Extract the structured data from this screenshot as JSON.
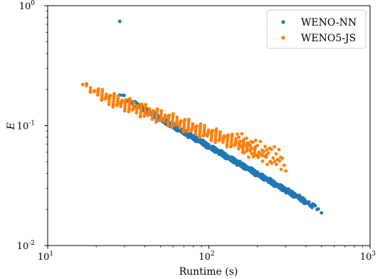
{
  "chart_data": {
    "type": "scatter",
    "xscale": "log",
    "yscale": "log",
    "xlim": [
      10,
      1000
    ],
    "ylim": [
      0.01,
      1
    ],
    "xlabel": "Runtime (s)",
    "ylabel": "E",
    "grid": false,
    "legend_position": "top-right",
    "x_ticks": [
      {
        "value": 10,
        "base": "10",
        "exp": "1"
      },
      {
        "value": 100,
        "base": "10",
        "exp": "2"
      },
      {
        "value": 1000,
        "base": "10",
        "exp": "3"
      }
    ],
    "y_ticks": [
      {
        "value": 0.01,
        "base": "10",
        "exp": "-2"
      },
      {
        "value": 0.1,
        "base": "10",
        "exp": "-1"
      },
      {
        "value": 1,
        "base": "10",
        "exp": "0"
      }
    ],
    "series": [
      {
        "name": "WENO-NN",
        "color": "#1f77b4",
        "outliers": [
          [
            28,
            0.74
          ]
        ],
        "bands": [
          {
            "x0": 28,
            "x1": 500,
            "y0": 0.18,
            "y1": 0.027,
            "rows": 10,
            "count": 40,
            "spread": 0.9
          }
        ]
      },
      {
        "name": "WENO5-JS",
        "color": "#ff7f0e",
        "outliers": [],
        "bands": [
          {
            "x0": 16.5,
            "x1": 240,
            "y0": 0.22,
            "y1": 0.075,
            "rows": 8,
            "count": 42,
            "spread": 1.0
          },
          {
            "x0": 150,
            "x1": 300,
            "y0": 0.085,
            "y1": 0.062,
            "rows": 5,
            "count": 10,
            "spread": 1.0
          }
        ]
      }
    ]
  }
}
